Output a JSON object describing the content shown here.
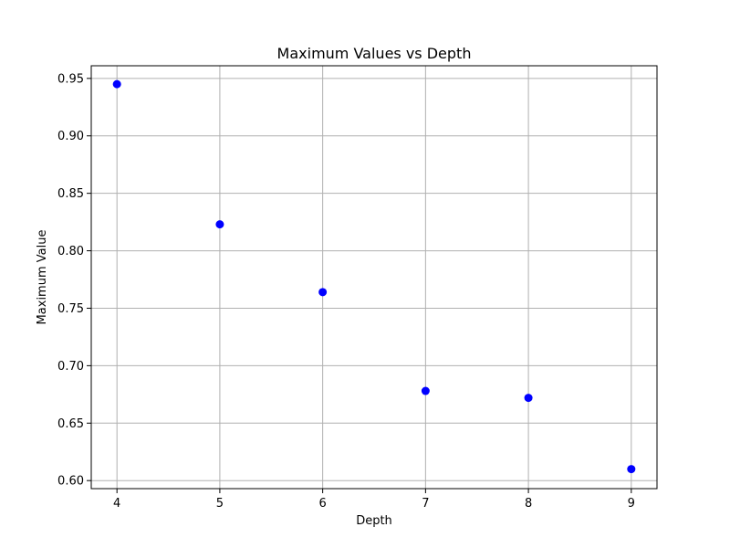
{
  "chart_data": {
    "type": "scatter",
    "title": "Maximum Values vs Depth",
    "xlabel": "Depth",
    "ylabel": "Maximum Value",
    "x": [
      4,
      5,
      6,
      7,
      8,
      9
    ],
    "y": [
      0.945,
      0.823,
      0.764,
      0.678,
      0.672,
      0.61
    ],
    "xlim": [
      3.75,
      9.25
    ],
    "ylim": [
      0.593,
      0.961
    ],
    "xticks": [
      4,
      5,
      6,
      7,
      8,
      9
    ],
    "xtick_labels": [
      "4",
      "5",
      "6",
      "7",
      "8",
      "9"
    ],
    "yticks": [
      0.6,
      0.65,
      0.7,
      0.75,
      0.8,
      0.85,
      0.9,
      0.95
    ],
    "ytick_labels": [
      "0.60",
      "0.65",
      "0.70",
      "0.75",
      "0.80",
      "0.85",
      "0.90",
      "0.95"
    ],
    "grid": true,
    "marker_color": "#0000ff"
  }
}
